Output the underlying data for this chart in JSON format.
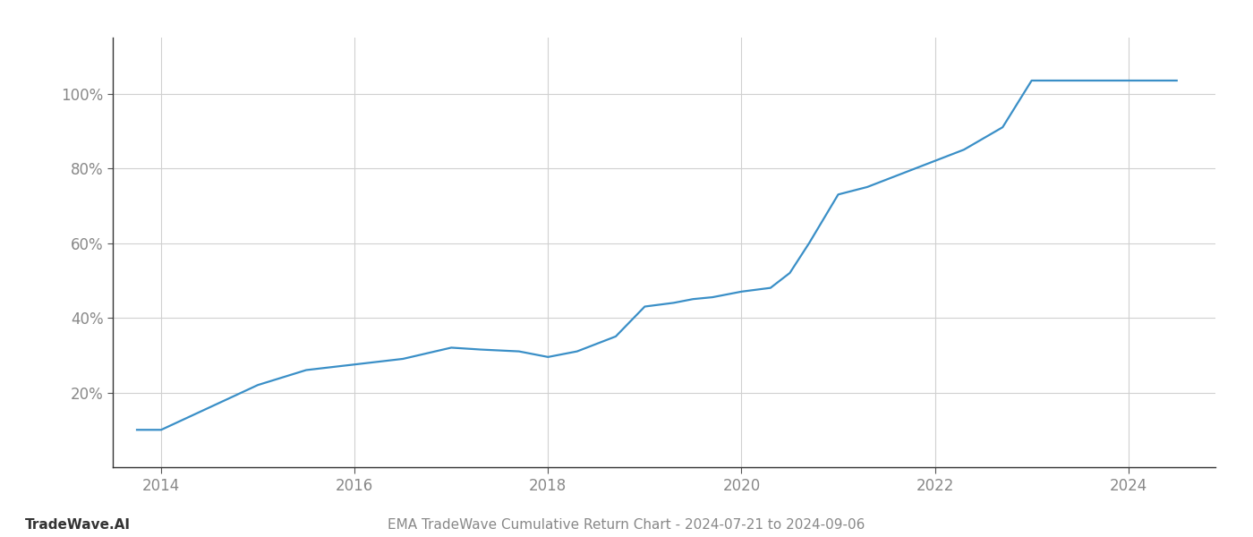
{
  "x_years": [
    2013.75,
    2014.0,
    2014.5,
    2015.0,
    2015.5,
    2016.0,
    2016.5,
    2017.0,
    2017.3,
    2017.7,
    2018.0,
    2018.3,
    2018.7,
    2019.0,
    2019.3,
    2019.5,
    2019.7,
    2020.0,
    2020.3,
    2020.5,
    2020.7,
    2021.0,
    2021.3,
    2021.7,
    2022.0,
    2022.3,
    2022.7,
    2023.0,
    2023.3,
    2023.7,
    2024.0,
    2024.5
  ],
  "y_values": [
    10,
    10,
    16,
    22,
    26,
    27.5,
    29,
    32,
    31.5,
    31,
    29.5,
    31,
    35,
    43,
    44,
    45,
    45.5,
    47,
    48,
    52,
    60,
    73,
    75,
    79,
    82,
    85,
    91,
    103.5,
    103.5,
    103.5,
    103.5,
    103.5
  ],
  "line_color": "#3a8fc7",
  "line_width": 1.6,
  "background_color": "#ffffff",
  "grid_color": "#d0d0d0",
  "title": "EMA TradeWave Cumulative Return Chart - 2024-07-21 to 2024-09-06",
  "watermark": "TradeWave.AI",
  "xlim": [
    2013.5,
    2024.9
  ],
  "ylim": [
    0,
    115
  ],
  "ytick_values": [
    20,
    40,
    60,
    80,
    100
  ],
  "ytick_labels": [
    "20%",
    "40%",
    "60%",
    "80%",
    "100%"
  ],
  "xtick_values": [
    2014,
    2016,
    2018,
    2020,
    2022,
    2024
  ],
  "xtick_labels": [
    "2014",
    "2016",
    "2018",
    "2020",
    "2022",
    "2024"
  ],
  "title_fontsize": 11,
  "watermark_fontsize": 11,
  "tick_fontsize": 12,
  "label_color": "#888888"
}
